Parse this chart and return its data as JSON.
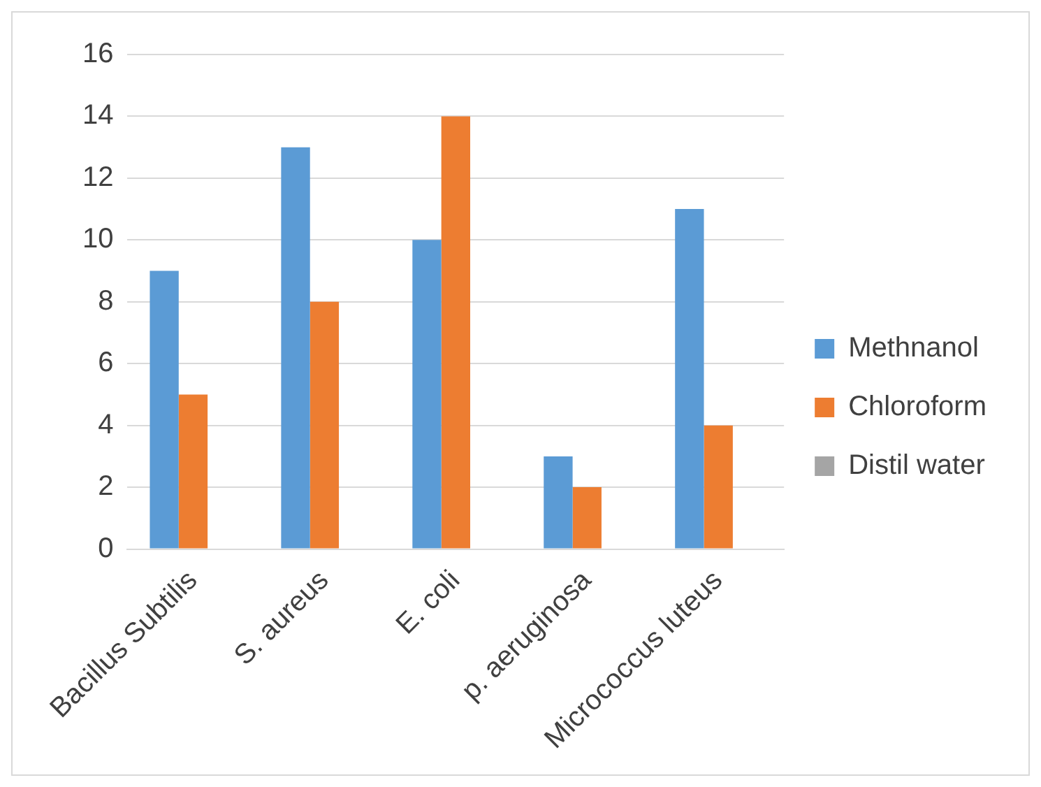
{
  "chart_data": {
    "type": "bar",
    "categories": [
      "Bacillus Subtilis",
      "S. aureus",
      "E. coli",
      "p. aeruginosa",
      "Micrococcus luteus"
    ],
    "series": [
      {
        "name": "Methnanol",
        "color": "#5b9bd5",
        "values": [
          9,
          13,
          10,
          3,
          11
        ]
      },
      {
        "name": "Chloroform",
        "color": "#ed7d31",
        "values": [
          5,
          8,
          14,
          2,
          4
        ]
      },
      {
        "name": "Distil water",
        "color": "#a5a5a5",
        "values": [
          0,
          0,
          0,
          0,
          0
        ]
      }
    ],
    "ylim": [
      0,
      16
    ],
    "yticks": [
      0,
      2,
      4,
      6,
      8,
      10,
      12,
      14,
      16
    ],
    "grid": "y",
    "legend": "right"
  }
}
